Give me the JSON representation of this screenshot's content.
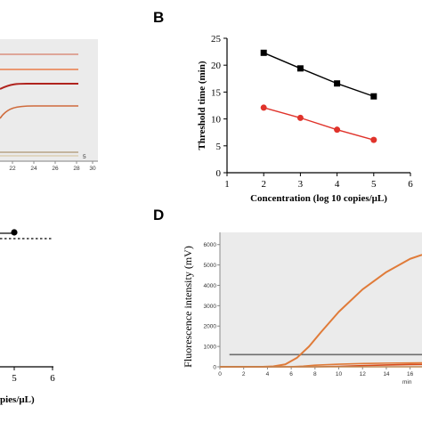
{
  "panels": {
    "A": {
      "x_ticks": [
        "22",
        "24",
        "26",
        "28",
        "30"
      ],
      "curve_label": "5"
    },
    "B": {
      "letter": "B"
    },
    "C": {
      "x_ticks": [
        "5",
        "6"
      ],
      "xlabel_fragment": "pies/μL)"
    },
    "D": {
      "letter": "D"
    }
  },
  "chart_data": [
    {
      "panel": "A",
      "type": "line",
      "visible": "partial (cropped at left edge)",
      "x": [
        22,
        24,
        26,
        28,
        30
      ],
      "series": [
        {
          "color": "#d9907e"
        },
        {
          "color": "#ea7c4a"
        },
        {
          "color": "#b0231e"
        },
        {
          "color": "#cf6b3c"
        },
        {
          "color": "#b8a386"
        }
      ]
    },
    {
      "panel": "B",
      "type": "line",
      "title": "",
      "xlabel": "Concentration (log 10 copies/μL)",
      "ylabel": "Threshold time (min)",
      "xlim": [
        1,
        6
      ],
      "ylim": [
        0,
        25
      ],
      "x_ticks": [
        "1",
        "2",
        "3",
        "4",
        "5",
        "6"
      ],
      "y_ticks": [
        "0",
        "5",
        "10",
        "15",
        "20",
        "25"
      ],
      "series": [
        {
          "marker": "square",
          "color": "#000000",
          "x": [
            2,
            3,
            4,
            5
          ],
          "y": [
            22.3,
            19.4,
            16.6,
            14.2
          ]
        },
        {
          "marker": "circle",
          "color": "#e0332b",
          "x": [
            2,
            3,
            4,
            5
          ],
          "y": [
            12.1,
            10.2,
            8.0,
            6.1
          ]
        }
      ]
    },
    {
      "panel": "C",
      "type": "scatter",
      "visible": "partial (cropped at left edge)",
      "x": [
        5
      ],
      "y_marker": "filled circle at top with dashed threshold line"
    },
    {
      "panel": "D",
      "type": "line",
      "ylabel": "Fluorescence intensity (mV)",
      "xlabel": "min",
      "xlim": [
        0,
        17
      ],
      "ylim": [
        0,
        6600
      ],
      "x_ticks": [
        "0",
        "2",
        "4",
        "6",
        "8",
        "10",
        "12",
        "14",
        "16"
      ],
      "y_ticks": [
        "0",
        "1000",
        "2000",
        "3000",
        "4000",
        "5000",
        "6000"
      ],
      "threshold": 600,
      "series": [
        {
          "color": "#e07b39",
          "x": [
            0,
            3.6,
            4.5,
            5.5,
            6.5,
            7.5,
            8.5,
            10,
            12,
            14,
            16,
            17
          ],
          "y": [
            0,
            0,
            20,
            120,
            450,
            1000,
            1700,
            2700,
            3800,
            4650,
            5300,
            5500
          ]
        },
        {
          "color": "#e07b39",
          "x": [
            0,
            5,
            6,
            7,
            8,
            10,
            12,
            14,
            16,
            17
          ],
          "y": [
            0,
            0,
            5,
            30,
            80,
            130,
            160,
            180,
            190,
            195
          ]
        },
        {
          "color": "#d84a1a",
          "x": [
            0,
            8,
            10,
            12,
            14,
            16,
            17
          ],
          "y": [
            0,
            0,
            20,
            60,
            90,
            110,
            115
          ]
        },
        {
          "color": "#c08a55",
          "x": [
            0,
            17
          ],
          "y": [
            0,
            0
          ]
        }
      ]
    }
  ]
}
